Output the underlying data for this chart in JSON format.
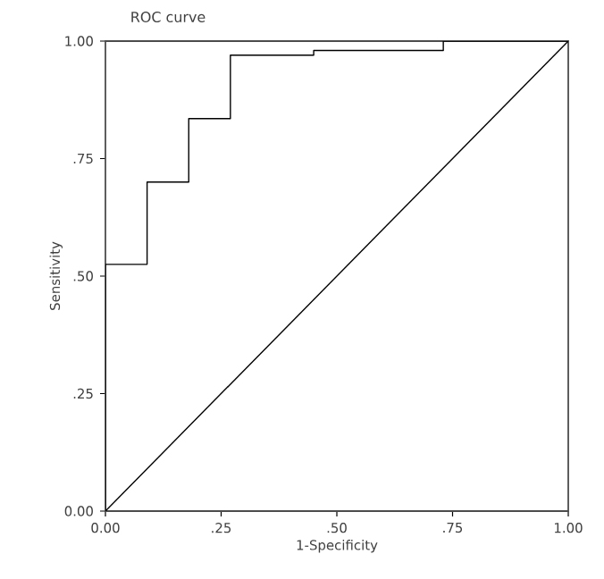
{
  "chart_data": {
    "type": "line",
    "title": "ROC curve",
    "xlabel": "1-Specificity",
    "ylabel": "Sensitivity",
    "xlim": [
      0,
      1
    ],
    "ylim": [
      0,
      1
    ],
    "xticks": [
      {
        "value": 0,
        "label": "0.00"
      },
      {
        "value": 0.25,
        "label": ".25"
      },
      {
        "value": 0.5,
        "label": ".50"
      },
      {
        "value": 0.75,
        "label": ".75"
      },
      {
        "value": 1,
        "label": "1.00"
      }
    ],
    "yticks": [
      {
        "value": 0,
        "label": "0.00"
      },
      {
        "value": 0.25,
        "label": ".25"
      },
      {
        "value": 0.5,
        "label": ".50"
      },
      {
        "value": 0.75,
        "label": ".75"
      },
      {
        "value": 1,
        "label": "1.00"
      }
    ],
    "marker": "none",
    "line_style": "solid",
    "series": [
      {
        "color": "#000000",
        "x": [
          0,
          0,
          0.09,
          0.09,
          0.18,
          0.18,
          0.27,
          0.27,
          0.45,
          0.45,
          0.73,
          0.73,
          1
        ],
        "values": [
          0,
          0.525,
          0.525,
          0.7,
          0.7,
          0.835,
          0.835,
          0.97,
          0.97,
          0.98,
          0.98,
          1,
          1
        ]
      },
      {
        "color": "#000000",
        "x": [
          0,
          1
        ],
        "values": [
          0,
          1
        ]
      }
    ]
  }
}
